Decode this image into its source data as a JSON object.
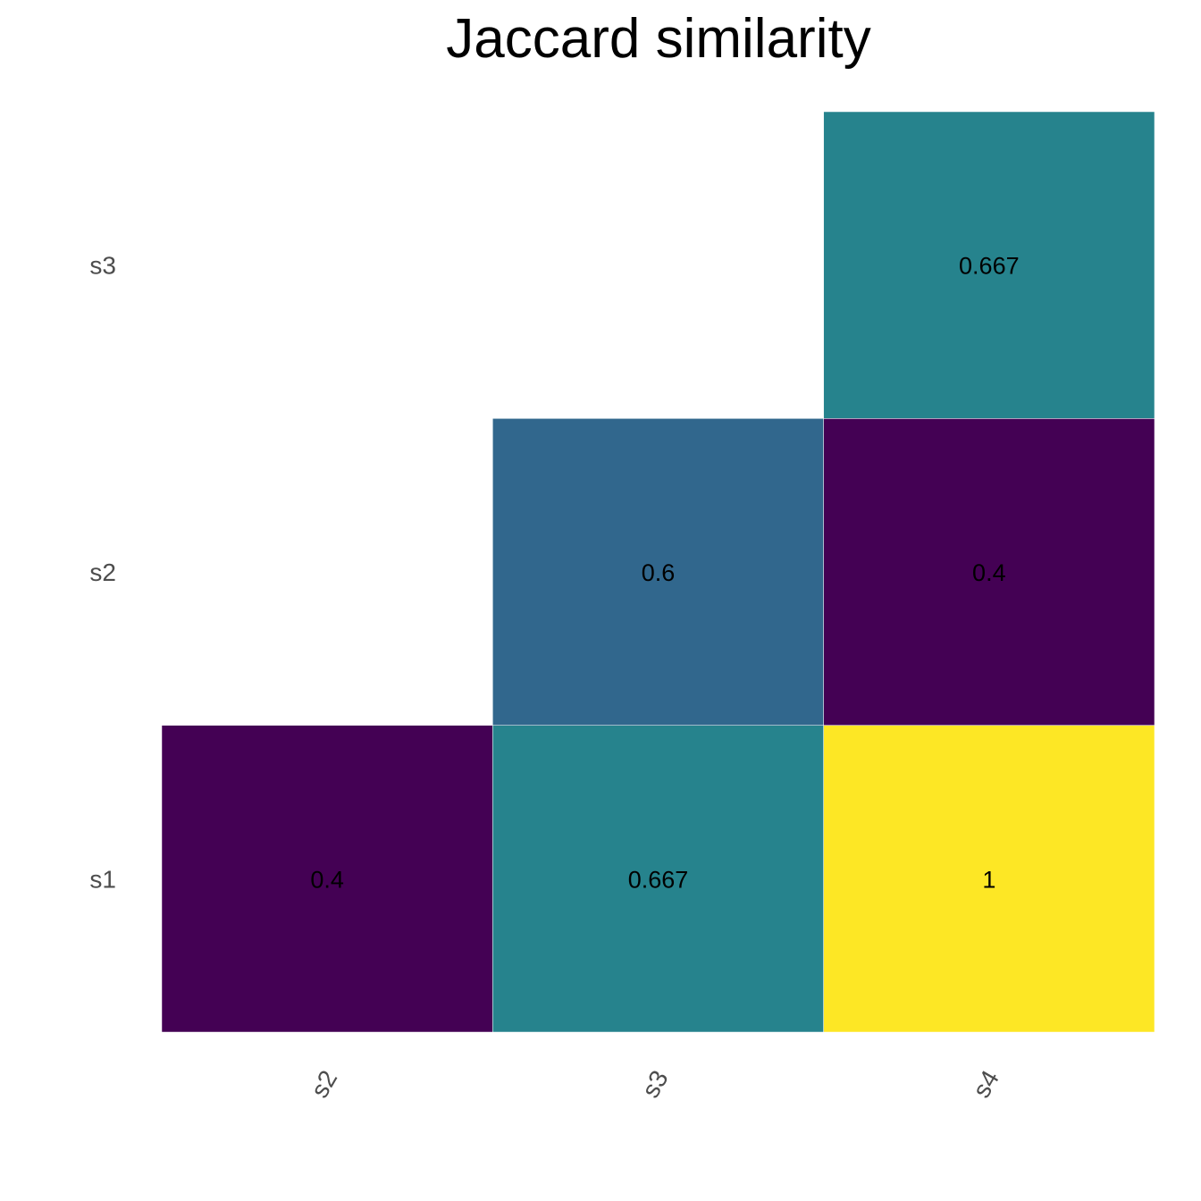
{
  "chart_data": {
    "type": "heatmap",
    "title": "Jaccard similarity",
    "x_categories": [
      "s2",
      "s3",
      "s4"
    ],
    "y_categories": [
      "s1",
      "s2",
      "s3"
    ],
    "cells": [
      {
        "x": "s2",
        "y": "s1",
        "value": 0.4,
        "label": "0.4"
      },
      {
        "x": "s3",
        "y": "s1",
        "value": 0.667,
        "label": "0.667"
      },
      {
        "x": "s4",
        "y": "s1",
        "value": 1,
        "label": "1"
      },
      {
        "x": "s3",
        "y": "s2",
        "value": 0.6,
        "label": "0.6"
      },
      {
        "x": "s4",
        "y": "s2",
        "value": 0.4,
        "label": "0.4"
      },
      {
        "x": "s4",
        "y": "s3",
        "value": 0.667,
        "label": "0.667"
      }
    ],
    "color_scale": "viridis",
    "value_range": [
      0.4,
      1
    ],
    "grid": false,
    "legend": "none"
  }
}
